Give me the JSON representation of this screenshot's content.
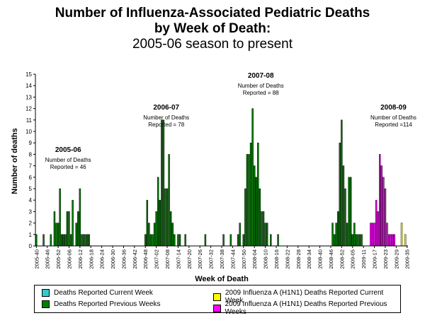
{
  "title": {
    "line1": "Number of Influenza-Associated Pediatric Deaths",
    "line2": "by Week of Death:",
    "line3": "2005-06 season to present"
  },
  "colors": {
    "current_week": "#33CCCC",
    "previous_weeks": "#008000",
    "h1n1_current_week": "#FFFF00",
    "h1n1_previous_weeks": "#FF00FF"
  },
  "chart_data": {
    "type": "bar",
    "stacked": true,
    "title": "Number of Influenza-Associated Pediatric Deaths by Week of Death: 2005-06 season to present",
    "xlabel": "Week of Death",
    "ylabel": "Number of deaths",
    "ylim": [
      0,
      15
    ],
    "yticks": [
      0,
      1,
      2,
      3,
      4,
      5,
      6,
      7,
      8,
      9,
      10,
      11,
      12,
      13,
      14,
      15
    ],
    "x_start": "2005-40",
    "x_end": "2009-35",
    "xtick_labels": [
      "2005-40",
      "2005-46",
      "2005-52",
      "2006-06",
      "2006-12",
      "2006-18",
      "2006-24",
      "2006-30",
      "2006-36",
      "2006-42",
      "2006-48",
      "2007-02",
      "2007-08",
      "2007-14",
      "2007-20",
      "2007-26",
      "2007-32",
      "2007-38",
      "2007-44",
      "2007-50",
      "2008-04",
      "2008-10",
      "2008-16",
      "2008-22",
      "2008-28",
      "2008-34",
      "2008-40",
      "2008-46",
      "2008-52",
      "2009-05",
      "2009-11",
      "2009-17",
      "2009-23",
      "2009-29",
      "2009-35"
    ],
    "legend_position": "bottom",
    "legend": [
      "Deaths Reported Current Week",
      "Deaths Reported Previous Weeks",
      "2009 Influenza A (H1N1) Deaths Reported Current Week",
      "2009 Influenza A (H1N1) Deaths Reported Previous Weeks"
    ],
    "annotations": [
      {
        "season": "2005-06",
        "text": "Number of Deaths Reported = 46",
        "at_week": "2006-06"
      },
      {
        "season": "2006-07",
        "text": "Number of Deaths Reported = 78",
        "at_week": "2007-08"
      },
      {
        "season": "2007-08",
        "text": "Number of Deaths Reported = 88",
        "at_week": "2008-08"
      },
      {
        "season": "2008-09",
        "text": "Number of Deaths Reported =114",
        "at_week": "2009-28"
      }
    ],
    "series": [
      {
        "name": "Deaths Reported Previous Weeks",
        "color_key": "previous_weeks",
        "points": [
          [
            "2005-40",
            1
          ],
          [
            "2005-44",
            1
          ],
          [
            "2005-48",
            1
          ],
          [
            "2005-50",
            3
          ],
          [
            "2005-51",
            2
          ],
          [
            "2005-52",
            2
          ],
          [
            "2006-01",
            5
          ],
          [
            "2006-02",
            1
          ],
          [
            "2006-03",
            1
          ],
          [
            "2006-04",
            1
          ],
          [
            "2006-05",
            3
          ],
          [
            "2006-06",
            3
          ],
          [
            "2006-07",
            1
          ],
          [
            "2006-08",
            4
          ],
          [
            "2006-10",
            2
          ],
          [
            "2006-11",
            3
          ],
          [
            "2006-12",
            5
          ],
          [
            "2006-13",
            1
          ],
          [
            "2006-14",
            1
          ],
          [
            "2006-15",
            1
          ],
          [
            "2006-16",
            1
          ],
          [
            "2006-17",
            1
          ],
          [
            "2006-48",
            1
          ],
          [
            "2006-49",
            4
          ],
          [
            "2006-50",
            2
          ],
          [
            "2006-51",
            1
          ],
          [
            "2006-52",
            1
          ],
          [
            "2007-01",
            2
          ],
          [
            "2007-02",
            3
          ],
          [
            "2007-03",
            6
          ],
          [
            "2007-04",
            4
          ],
          [
            "2007-05",
            11
          ],
          [
            "2007-06",
            11
          ],
          [
            "2007-07",
            5
          ],
          [
            "2007-08",
            5
          ],
          [
            "2007-09",
            8
          ],
          [
            "2007-10",
            3
          ],
          [
            "2007-11",
            2
          ],
          [
            "2007-12",
            1
          ],
          [
            "2007-14",
            1
          ],
          [
            "2007-15",
            1
          ],
          [
            "2007-18",
            1
          ],
          [
            "2007-29",
            1
          ],
          [
            "2007-39",
            1
          ],
          [
            "2007-43",
            1
          ],
          [
            "2007-47",
            1
          ],
          [
            "2007-48",
            2
          ],
          [
            "2007-50",
            1
          ],
          [
            "2007-51",
            5
          ],
          [
            "2007-52",
            8
          ],
          [
            "2008-01",
            8
          ],
          [
            "2008-02",
            9
          ],
          [
            "2008-03",
            12
          ],
          [
            "2008-04",
            7
          ],
          [
            "2008-05",
            6
          ],
          [
            "2008-06",
            9
          ],
          [
            "2008-07",
            5
          ],
          [
            "2008-08",
            3
          ],
          [
            "2008-09",
            3
          ],
          [
            "2008-10",
            2
          ],
          [
            "2008-11",
            2
          ],
          [
            "2008-13",
            1
          ],
          [
            "2008-17",
            1
          ],
          [
            "2008-47",
            2
          ],
          [
            "2008-48",
            1
          ],
          [
            "2008-49",
            2
          ],
          [
            "2008-50",
            3
          ],
          [
            "2008-51",
            9
          ],
          [
            "2008-52",
            11
          ],
          [
            "2008-53",
            7
          ],
          [
            "2009-01",
            5
          ],
          [
            "2009-02",
            2
          ],
          [
            "2009-03",
            6
          ],
          [
            "2009-04",
            6
          ],
          [
            "2009-05",
            1
          ],
          [
            "2009-06",
            2
          ],
          [
            "2009-07",
            1
          ],
          [
            "2009-08",
            1
          ],
          [
            "2009-09",
            1
          ],
          [
            "2009-10",
            1
          ]
        ]
      },
      {
        "name": "2009 Influenza A (H1N1) Deaths Reported Previous Weeks",
        "color_key": "h1n1_previous_weeks",
        "points": [
          [
            "2009-15",
            2
          ],
          [
            "2009-16",
            2
          ],
          [
            "2009-17",
            2
          ],
          [
            "2009-18",
            4
          ],
          [
            "2009-19",
            3
          ],
          [
            "2009-20",
            8
          ],
          [
            "2009-21",
            7
          ],
          [
            "2009-22",
            6
          ],
          [
            "2009-23",
            5
          ],
          [
            "2009-24",
            2
          ],
          [
            "2009-25",
            1
          ],
          [
            "2009-26",
            1
          ],
          [
            "2009-27",
            1
          ],
          [
            "2009-28",
            1
          ]
        ]
      },
      {
        "name": "2009 Influenza A (H1N1) Deaths Reported Current Week",
        "color_key": "h1n1_current_week",
        "points": [
          [
            "2009-32",
            2
          ],
          [
            "2009-34",
            1
          ]
        ]
      },
      {
        "name": "Deaths Reported Current Week",
        "color_key": "current_week",
        "points": []
      }
    ]
  }
}
